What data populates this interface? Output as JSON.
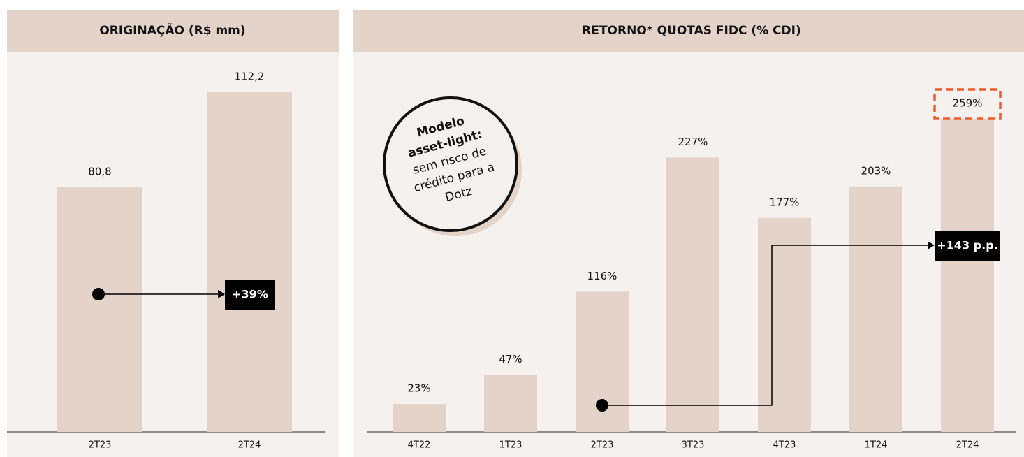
{
  "chart_data": [
    {
      "type": "bar",
      "title": "ORIGINAÇÃO (R$ mm)",
      "categories": [
        "2T23",
        "2T24"
      ],
      "values": [
        80.8,
        112.2
      ],
      "value_labels": [
        "80,8",
        "112,2"
      ],
      "color": "#e3d3c8",
      "annotation": "+39%"
    },
    {
      "type": "bar",
      "title": "RETORNO* QUOTAS FIDC (% CDI)",
      "categories": [
        "4T22",
        "1T23",
        "2T23",
        "3T23",
        "4T23",
        "1T24",
        "2T24"
      ],
      "values": [
        23,
        47,
        116,
        227,
        177,
        203,
        259
      ],
      "value_labels": [
        "23%",
        "47%",
        "116%",
        "227%",
        "177%",
        "203%",
        "259%"
      ],
      "color": "#e3d3c8",
      "annotation": "+143 p.p.",
      "callout": [
        "Modelo",
        "asset-light:",
        "sem risco de",
        "crédito para a",
        "Dotz"
      ]
    }
  ]
}
